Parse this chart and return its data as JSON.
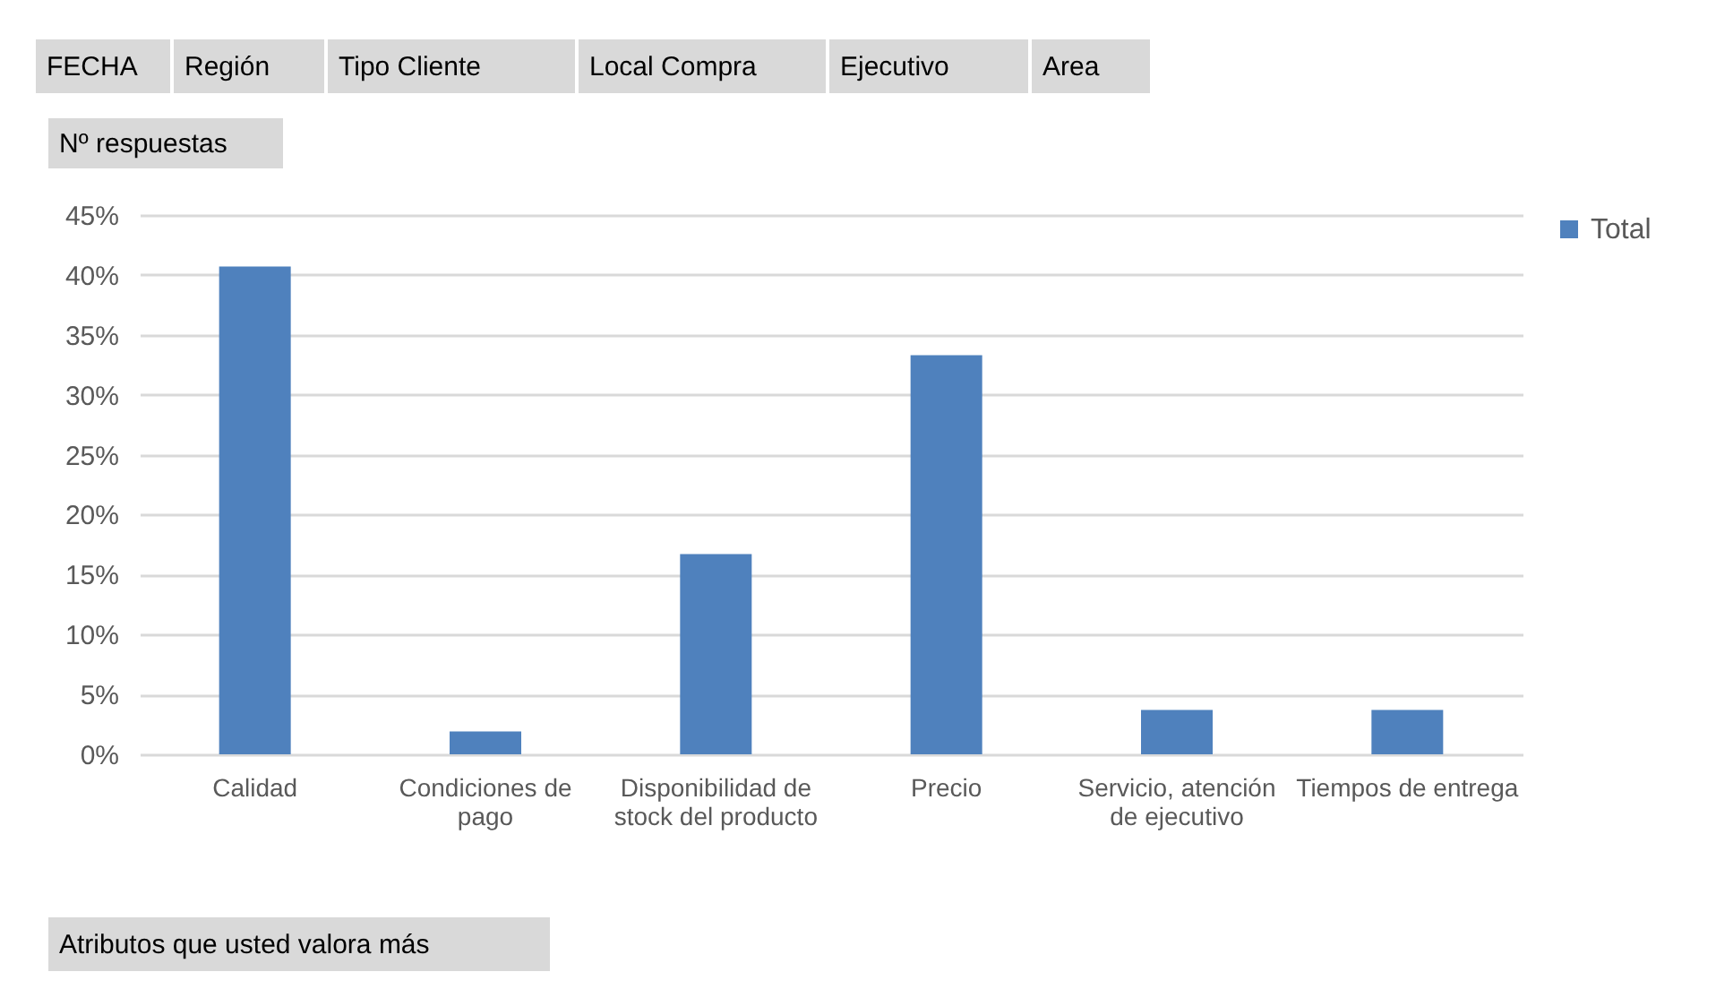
{
  "chart_data": {
    "type": "bar",
    "categories": [
      "Calidad",
      "Condiciones de pago",
      "Disponibilidad de stock del producto",
      "Precio",
      "Servicio, atención de ejecutivo",
      "Tiempos de entrega"
    ],
    "series": [
      {
        "name": "Total",
        "color": "#4f81bd",
        "values": [
          40.7,
          1.9,
          16.7,
          33.3,
          3.7,
          3.7
        ]
      }
    ],
    "ylim": [
      0,
      45
    ],
    "yticks": [
      {
        "value": 0,
        "label": "0%"
      },
      {
        "value": 5,
        "label": "5%"
      },
      {
        "value": 10,
        "label": "10%"
      },
      {
        "value": 15,
        "label": "15%"
      },
      {
        "value": 20,
        "label": "20%"
      },
      {
        "value": 25,
        "label": "25%"
      },
      {
        "value": 30,
        "label": "30%"
      },
      {
        "value": 35,
        "label": "35%"
      },
      {
        "value": 40,
        "label": "40%"
      },
      {
        "value": 45,
        "label": "45%"
      }
    ],
    "grid": "y",
    "legend": "right",
    "annotations": [
      "FECHA",
      "Región",
      "Tipo Cliente",
      "Local Compra",
      "Ejecutivo",
      "Area",
      "Nº respuestas",
      "Atributos que usted valora más"
    ]
  }
}
